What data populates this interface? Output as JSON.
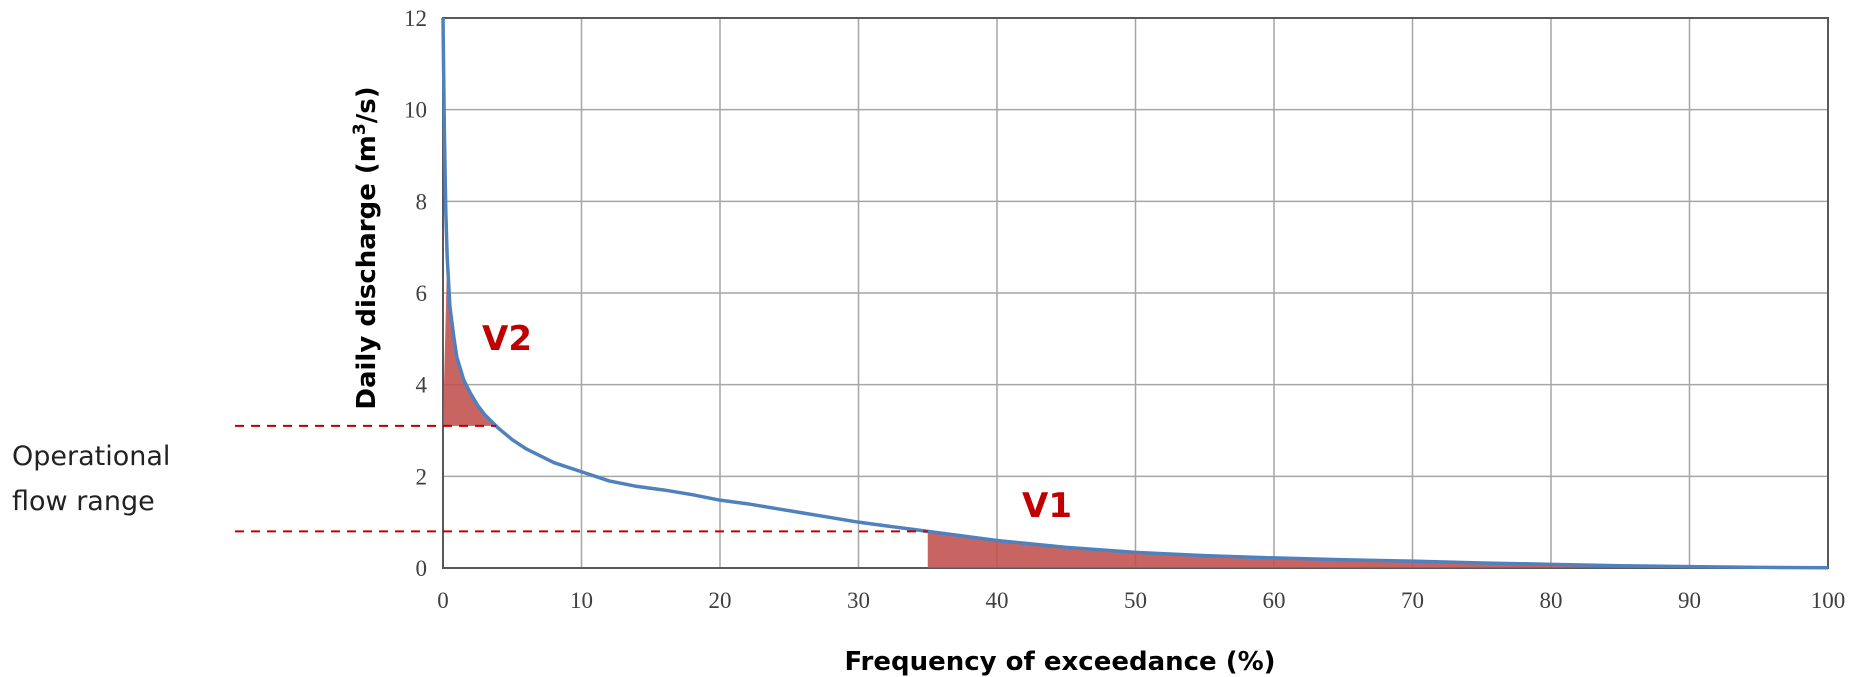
{
  "chart_data": {
    "type": "area",
    "xlabel": "Frequency of exceedance (%)",
    "ylabel_main": "Daily discharge (m",
    "ylabel_sup": "3",
    "ylabel_end": "/s)",
    "xlim": [
      0,
      100
    ],
    "ylim": [
      0,
      12
    ],
    "x_ticks": [
      "0",
      "10",
      "20",
      "30",
      "40",
      "50",
      "60",
      "70",
      "80",
      "90",
      "100"
    ],
    "y_ticks": [
      "0",
      "2",
      "4",
      "6",
      "8",
      "10",
      "12"
    ],
    "grid": true,
    "curve_color": "#4f81bd",
    "fill_color": "#c0504d",
    "threshold_color": "#c00000",
    "x": [
      0,
      0.1,
      0.2,
      0.3,
      0.5,
      0.8,
      1,
      1.5,
      2,
      2.5,
      3,
      4,
      5,
      6,
      7,
      8,
      9,
      10,
      12,
      14,
      16,
      18,
      20,
      22,
      24,
      26,
      28,
      30,
      32,
      34,
      35,
      40,
      45,
      50,
      55,
      60,
      65,
      70,
      75,
      80,
      85,
      90,
      95,
      100
    ],
    "y": [
      12,
      9.5,
      7.8,
      6.8,
      5.7,
      5.0,
      4.6,
      4.1,
      3.8,
      3.55,
      3.35,
      3.05,
      2.8,
      2.6,
      2.45,
      2.3,
      2.2,
      2.1,
      1.9,
      1.78,
      1.7,
      1.6,
      1.48,
      1.4,
      1.3,
      1.2,
      1.1,
      1.0,
      0.92,
      0.84,
      0.8,
      0.6,
      0.45,
      0.34,
      0.27,
      0.22,
      0.18,
      0.15,
      0.11,
      0.08,
      0.05,
      0.03,
      0.015,
      0.005
    ],
    "thresholds": {
      "upper": 3.1,
      "lower": 0.8
    },
    "v1_start_x": 35,
    "v1_label": "V1",
    "v2_label": "V2",
    "annotation_line1": "Operational",
    "annotation_line2": "flow range"
  }
}
